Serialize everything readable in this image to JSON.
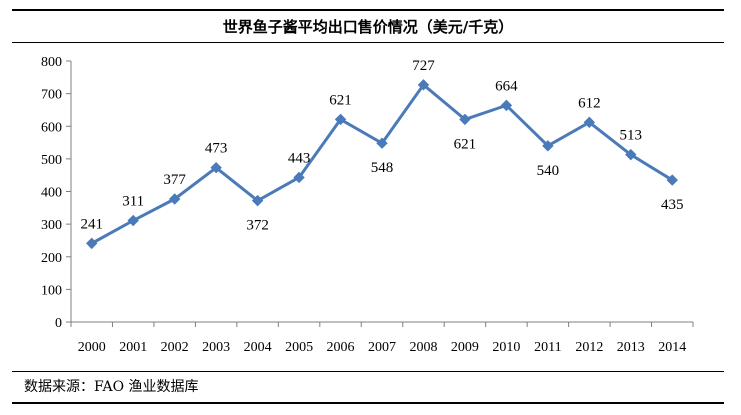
{
  "title": "世界鱼子酱平均出口售价情况（美元/千克）",
  "source": "数据来源：FAO 渔业数据库",
  "chart_data": {
    "type": "line",
    "title": "世界鱼子酱平均出口售价情况（美元/千克）",
    "xlabel": "",
    "ylabel": "",
    "categories": [
      "2000",
      "2001",
      "2002",
      "2003",
      "2004",
      "2005",
      "2006",
      "2007",
      "2008",
      "2009",
      "2010",
      "2011",
      "2012",
      "2013",
      "2014"
    ],
    "series": [
      {
        "values": [
          241,
          311,
          377,
          473,
          372,
          443,
          621,
          548,
          727,
          621,
          664,
          540,
          612,
          513,
          435
        ]
      }
    ],
    "ylim": [
      0,
      800
    ],
    "yticks": [
      0,
      100,
      200,
      300,
      400,
      500,
      600,
      700,
      800
    ],
    "grid": false,
    "legend": "none",
    "data_labels": true,
    "line_color": "#4a7ab8"
  }
}
